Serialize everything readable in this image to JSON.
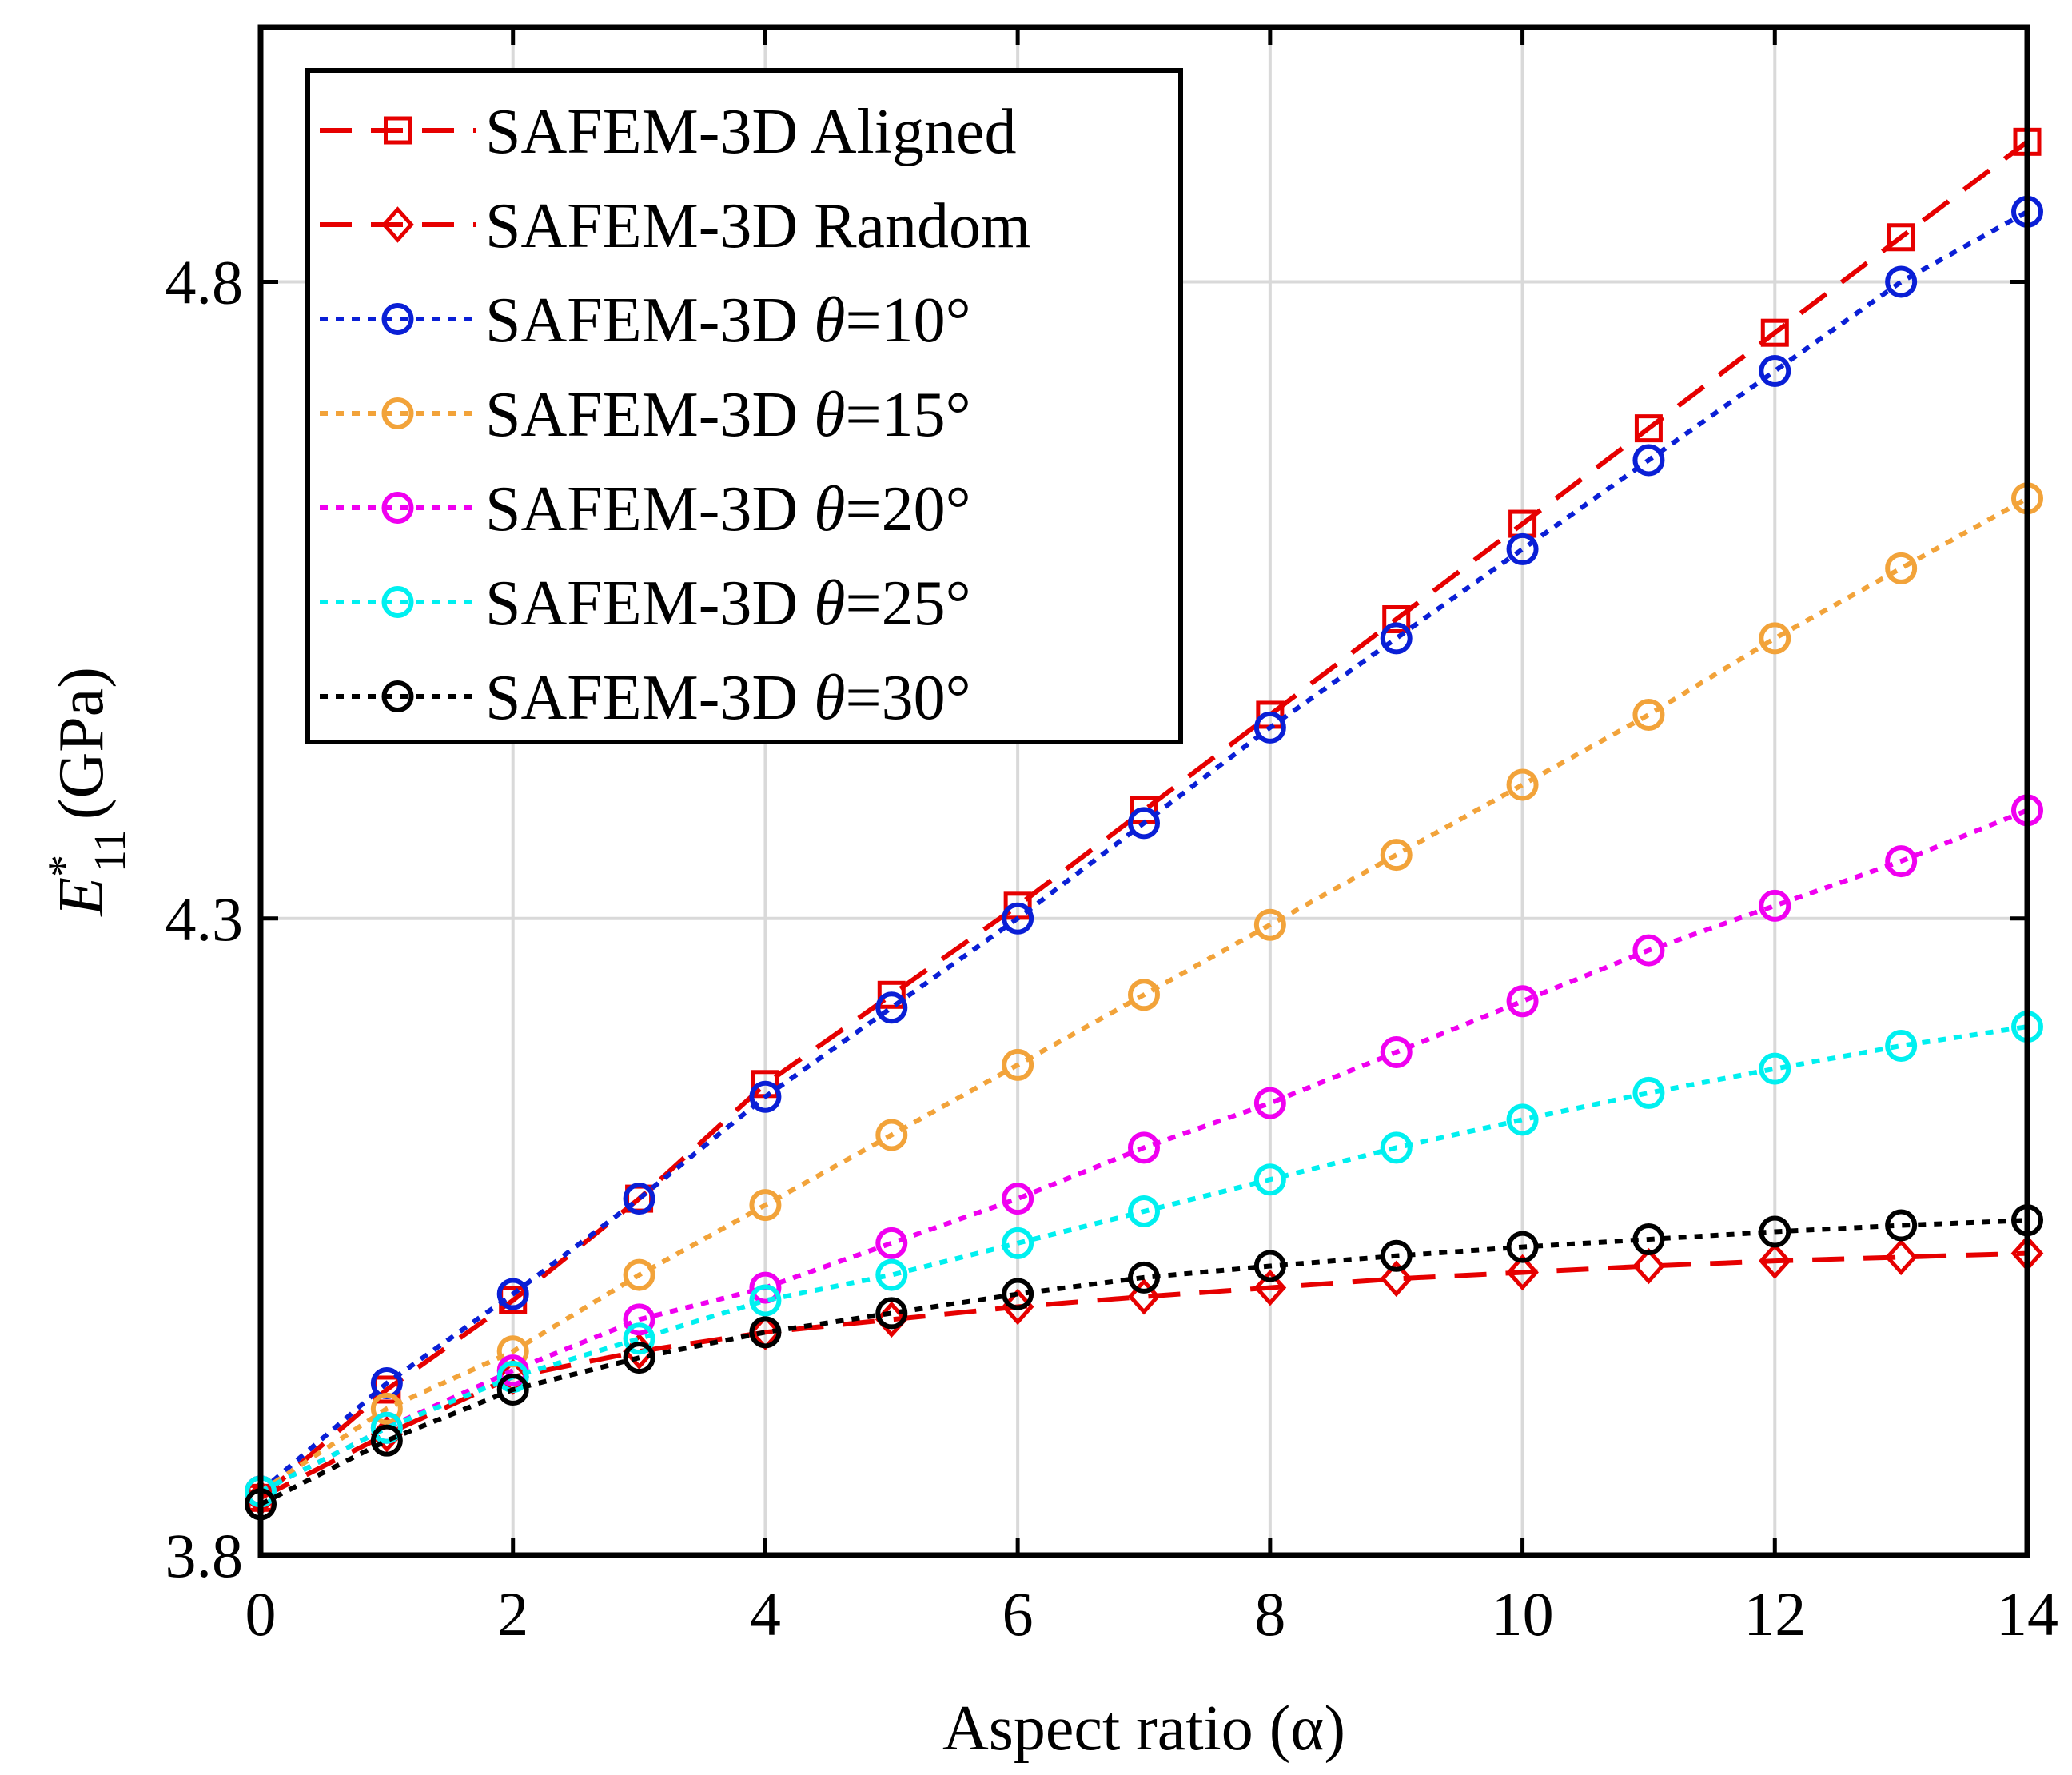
{
  "chart_data": {
    "type": "line",
    "title": "",
    "xlabel": "Aspect ratio (α)",
    "ylabel": "E*11 (GPa)",
    "ylabel_parts": {
      "symbol": "E",
      "sup": "*",
      "sub": "11",
      "unit": "(GPa)"
    },
    "xlim": [
      0,
      14
    ],
    "ylim": [
      3.8,
      5.0
    ],
    "xticks": [
      "0",
      "2",
      "4",
      "6",
      "8",
      "10",
      "12",
      "14"
    ],
    "yticks": [
      "3.8",
      "4.3",
      "4.8"
    ],
    "grid": true,
    "legend_position": "top-left",
    "x": [
      0,
      1,
      2,
      3,
      4,
      5,
      6,
      7,
      8,
      9,
      10,
      11,
      12,
      13,
      14
    ],
    "series": [
      {
        "name": "SAFEM-3D Aligned",
        "color": "#e60000",
        "linestyle": "dashed",
        "marker": "square",
        "values": [
          3.845,
          3.93,
          4.0,
          4.08,
          4.17,
          4.24,
          4.31,
          4.385,
          4.46,
          4.535,
          4.61,
          4.685,
          4.76,
          4.835,
          4.91
        ]
      },
      {
        "name": "SAFEM-3D Random",
        "color": "#e60000",
        "linestyle": "dashed",
        "marker": "diamond",
        "values": [
          3.845,
          3.895,
          3.94,
          3.96,
          3.975,
          3.985,
          3.995,
          4.003,
          4.01,
          4.017,
          4.022,
          4.027,
          4.031,
          4.034,
          4.037
        ]
      },
      {
        "name": "SAFEM-3D θ=10°",
        "color": "#0a1fd6",
        "linestyle": "dotted",
        "marker": "circle",
        "values": [
          3.85,
          3.935,
          4.005,
          4.08,
          4.16,
          4.23,
          4.3,
          4.375,
          4.45,
          4.52,
          4.59,
          4.66,
          4.73,
          4.8,
          4.855
        ]
      },
      {
        "name": "SAFEM-3D θ=15°",
        "color": "#f2a33a",
        "linestyle": "dotted",
        "marker": "circle",
        "values": [
          3.85,
          3.915,
          3.96,
          4.02,
          4.075,
          4.13,
          4.185,
          4.24,
          4.295,
          4.35,
          4.405,
          4.46,
          4.52,
          4.575,
          4.63
        ]
      },
      {
        "name": "SAFEM-3D θ=20°",
        "color": "#f000f0",
        "linestyle": "dotted",
        "marker": "circle",
        "values": [
          3.85,
          3.9,
          3.945,
          3.985,
          4.01,
          4.045,
          4.08,
          4.12,
          4.155,
          4.195,
          4.235,
          4.275,
          4.31,
          4.345,
          4.385
        ]
      },
      {
        "name": "SAFEM-3D θ=25°",
        "color": "#00f0f0",
        "linestyle": "dotted",
        "marker": "circle",
        "values": [
          3.85,
          3.9,
          3.94,
          3.97,
          4.0,
          4.02,
          4.045,
          4.07,
          4.095,
          4.12,
          4.142,
          4.163,
          4.182,
          4.2,
          4.215
        ]
      },
      {
        "name": "SAFEM-3D θ=30°",
        "color": "#000000",
        "linestyle": "dotted",
        "marker": "circle",
        "values": [
          3.84,
          3.89,
          3.93,
          3.955,
          3.975,
          3.99,
          4.005,
          4.018,
          4.027,
          4.035,
          4.042,
          4.048,
          4.054,
          4.059,
          4.063
        ]
      }
    ]
  }
}
